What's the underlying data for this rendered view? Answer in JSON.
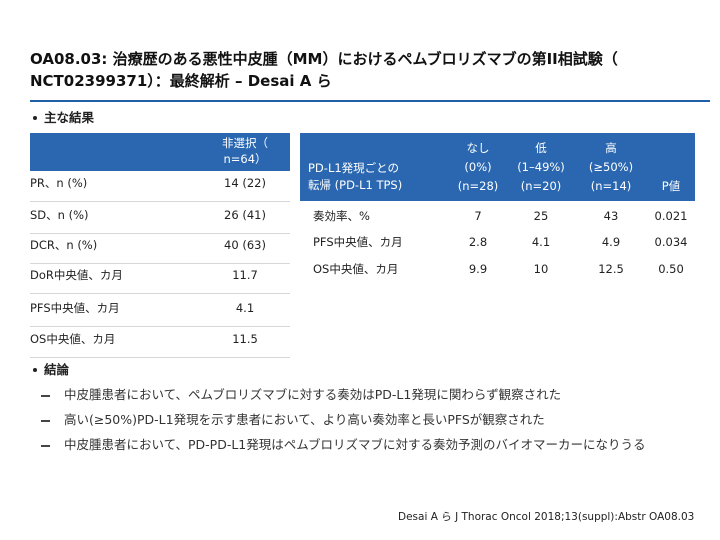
{
  "title": [
    "OA08.03: 治療歴のある悪性中皮腫（MM）におけるペムブロリズマブの第II相試験（",
    "NCT02399371）：最終解析 – Desai A ら"
  ],
  "section1": "主な結果",
  "left_table": {
    "header": [
      "非選択（",
      "n=64）"
    ],
    "rows": [
      [
        "PR、n (%)",
        "14 (22)"
      ],
      [
        "SD、n (%)",
        "26 (41)"
      ],
      [
        "DCR、n (%)",
        "40 (63)"
      ],
      [
        "DoR中央値、カ月",
        "11.7"
      ],
      [
        "PFS中央値、カ月",
        "4.1"
      ],
      [
        "OS中央値、カ月",
        "11.5"
      ]
    ]
  },
  "right_table": {
    "header_label": [
      "PD-L1発現ごとの",
      "転帰 (PD-L1 TPS)"
    ],
    "columns": [
      [
        "なし",
        "(0%)",
        "(n=28)"
      ],
      [
        "低",
        "(1–49%)",
        "(n=20)"
      ],
      [
        "高",
        "(≥50%)",
        "(n=14)"
      ],
      [
        "P値"
      ]
    ],
    "rows": [
      [
        "奏効率、%",
        "7",
        "25",
        "43",
        "0.021"
      ],
      [
        "PFS中央値、カ月",
        "2.8",
        "4.1",
        "4.9",
        "0.034"
      ],
      [
        "OS中央値、カ月",
        "9.9",
        "10",
        "12.5",
        "0.50"
      ]
    ]
  },
  "section2": "結論",
  "conclusions": [
    "中皮腫患者において、ペムブロリズマブに対する奏効はPD-L1発現に関わらず観察された",
    "高い(≥50%)PD-L1発現を示す患者において、より高い奏効率と長いPFSが観察された",
    "中皮腫患者において、PD-PD-L1発現はペムブロリズマブに対する奏効予測のバイオマーカーになりうる"
  ],
  "footnote": "Desai A ら J Thorac Oncol 2018;13(suppl):Abstr OA08.03"
}
